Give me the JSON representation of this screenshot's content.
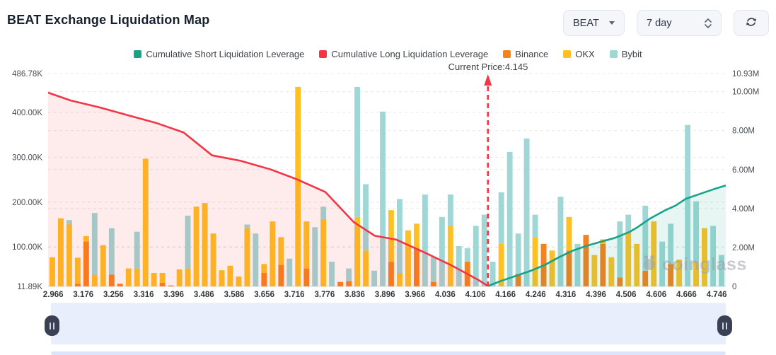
{
  "header": {
    "title": "BEAT Exchange Liquidation Map",
    "symbol_select": "BEAT",
    "period_select": "7 day"
  },
  "legend": [
    {
      "label": "Cumulative Short Liquidation Leverage",
      "color": "#17a28a"
    },
    {
      "label": "Cumulative Long Liquidation Leverage",
      "color": "#f23645"
    },
    {
      "label": "Binance",
      "color": "#f8821a"
    },
    {
      "label": "OKX",
      "color": "#fec022"
    },
    {
      "label": "Bybit",
      "color": "#9ed7d5"
    }
  ],
  "watermark": "coinglass",
  "chart_data": {
    "type": "bar",
    "subtype": "stacked bars + cumulative area lines",
    "title": "BEAT Exchange Liquidation Map",
    "x_ticks": [
      "2.966",
      "3.176",
      "3.256",
      "3.316",
      "3.396",
      "3.486",
      "3.586",
      "3.656",
      "3.716",
      "3.776",
      "3.836",
      "3.896",
      "3.966",
      "4.036",
      "4.106",
      "4.166",
      "4.246",
      "4.316",
      "4.396",
      "4.506",
      "4.606",
      "4.666",
      "4.746"
    ],
    "left_axis": {
      "unit": "K",
      "min": 11.89,
      "max": 486.78,
      "ticks": [
        {
          "label": "486.78K",
          "value": 486.78
        },
        {
          "label": "400.00K",
          "value": 400
        },
        {
          "label": "300.00K",
          "value": 300
        },
        {
          "label": "200.00K",
          "value": 200
        },
        {
          "label": "100.00K",
          "value": 100
        },
        {
          "label": "11.89K",
          "value": 11.89
        }
      ]
    },
    "right_axis": {
      "unit": "M",
      "min": 0,
      "max": 10.93,
      "ticks": [
        {
          "label": "10.93M",
          "value": 10.93
        },
        {
          "label": "10.00M",
          "value": 10
        },
        {
          "label": "8.00M",
          "value": 8
        },
        {
          "label": "6.00M",
          "value": 6
        },
        {
          "label": "4.00M",
          "value": 4
        },
        {
          "label": "2.00M",
          "value": 2
        },
        {
          "label": "0",
          "value": 0
        }
      ]
    },
    "bar_series": [
      "Binance",
      "OKX",
      "Bybit"
    ],
    "bar_colors": [
      "#f8821a",
      "#fec022",
      "#9ed7d5"
    ],
    "bars_note": "stacked [Binance,OKX,Bybit] in K on left axis, estimated from pixels",
    "bars": [
      [
        0,
        65,
        0
      ],
      [
        0,
        152,
        0
      ],
      [
        0,
        138,
        10
      ],
      [
        6,
        58,
        0
      ],
      [
        100,
        12,
        0
      ],
      [
        0,
        26,
        138
      ],
      [
        0,
        92,
        0
      ],
      [
        26,
        0,
        104
      ],
      [
        6,
        0,
        0
      ],
      [
        0,
        40,
        0
      ],
      [
        0,
        40,
        82
      ],
      [
        0,
        285,
        0
      ],
      [
        0,
        30,
        0
      ],
      [
        8,
        22,
        0
      ],
      [
        2,
        0,
        0
      ],
      [
        0,
        38,
        0
      ],
      [
        0,
        40,
        118
      ],
      [
        0,
        178,
        0
      ],
      [
        0,
        186,
        0
      ],
      [
        0,
        118,
        0
      ],
      [
        0,
        36,
        0
      ],
      [
        0,
        46,
        0
      ],
      [
        0,
        22,
        0
      ],
      [
        0,
        130,
        8
      ],
      [
        0,
        0,
        118
      ],
      [
        30,
        20,
        0
      ],
      [
        0,
        145,
        0
      ],
      [
        48,
        62,
        0
      ],
      [
        0,
        0,
        62
      ],
      [
        0,
        445,
        0
      ],
      [
        40,
        105,
        0
      ],
      [
        0,
        0,
        132
      ],
      [
        0,
        150,
        28
      ],
      [
        0,
        0,
        55
      ],
      [
        10,
        0,
        0
      ],
      [
        12,
        0,
        28
      ],
      [
        0,
        155,
        290
      ],
      [
        0,
        80,
        148
      ],
      [
        0,
        0,
        35
      ],
      [
        0,
        0,
        390
      ],
      [
        55,
        115,
        0
      ],
      [
        0,
        30,
        165
      ],
      [
        0,
        125,
        0
      ],
      [
        85,
        55,
        0
      ],
      [
        0,
        0,
        205
      ],
      [
        10,
        0,
        55
      ],
      [
        0,
        0,
        155
      ],
      [
        0,
        135,
        70
      ],
      [
        0,
        0,
        90
      ],
      [
        55,
        0,
        30
      ],
      [
        0,
        0,
        135
      ],
      [
        0,
        0,
        160
      ],
      [
        0,
        0,
        55
      ],
      [
        0,
        95,
        115
      ],
      [
        0,
        0,
        300
      ],
      [
        28,
        0,
        90
      ],
      [
        0,
        0,
        330
      ],
      [
        0,
        110,
        50
      ],
      [
        95,
        0,
        0
      ],
      [
        0,
        80,
        0
      ],
      [
        0,
        0,
        200
      ],
      [
        80,
        75,
        0
      ],
      [
        0,
        0,
        95
      ],
      [
        115,
        0,
        0
      ],
      [
        0,
        70,
        0
      ],
      [
        95,
        10,
        0
      ],
      [
        0,
        65,
        0
      ],
      [
        20,
        0,
        125
      ],
      [
        0,
        120,
        40
      ],
      [
        0,
        95,
        0
      ],
      [
        35,
        0,
        145
      ],
      [
        0,
        145,
        0
      ],
      [
        0,
        0,
        100
      ],
      [
        50,
        0,
        90
      ],
      [
        0,
        60,
        0
      ],
      [
        0,
        0,
        360
      ],
      [
        0,
        55,
        135
      ],
      [
        0,
        130,
        0
      ],
      [
        0,
        0,
        135
      ],
      [
        0,
        0,
        70
      ]
    ],
    "lines": [
      {
        "name": "Cumulative Long Liquidation Leverage",
        "axis": "right",
        "unit": "M",
        "color": "#f23645",
        "fill": "rgba(242,54,69,0.10)",
        "points": [
          [
            0.0,
            9.95
          ],
          [
            0.033,
            9.55
          ],
          [
            0.075,
            9.2
          ],
          [
            0.117,
            8.8
          ],
          [
            0.159,
            8.4
          ],
          [
            0.2,
            7.9
          ],
          [
            0.242,
            6.73
          ],
          [
            0.284,
            6.45
          ],
          [
            0.329,
            6.0
          ],
          [
            0.367,
            5.5
          ],
          [
            0.409,
            4.85
          ],
          [
            0.451,
            3.3
          ],
          [
            0.482,
            2.6
          ],
          [
            0.514,
            2.4
          ],
          [
            0.555,
            1.75
          ],
          [
            0.597,
            1.05
          ],
          [
            0.634,
            0.35
          ],
          [
            0.649,
            0.02
          ]
        ]
      },
      {
        "name": "Cumulative Short Liquidation Leverage",
        "axis": "right",
        "unit": "M",
        "color": "#17a28a",
        "fill": "rgba(23,162,138,0.10)",
        "points": [
          [
            0.649,
            0.02
          ],
          [
            0.67,
            0.3
          ],
          [
            0.691,
            0.55
          ],
          [
            0.712,
            0.8
          ],
          [
            0.733,
            1.1
          ],
          [
            0.754,
            1.5
          ],
          [
            0.775,
            1.85
          ],
          [
            0.796,
            2.1
          ],
          [
            0.816,
            2.3
          ],
          [
            0.837,
            2.5
          ],
          [
            0.858,
            2.8
          ],
          [
            0.868,
            3.0
          ],
          [
            0.889,
            3.5
          ],
          [
            0.91,
            3.9
          ],
          [
            0.926,
            4.15
          ],
          [
            0.941,
            4.5
          ],
          [
            0.962,
            4.75
          ],
          [
            0.983,
            5.0
          ],
          [
            1.0,
            5.18
          ]
        ]
      }
    ],
    "current_price": {
      "label": "Current Price:4.145",
      "value": 4.145,
      "f": 0.649,
      "color": "#f23645"
    },
    "grid": "dashed horizontal lines for both axes",
    "legend_position": "top-center"
  }
}
